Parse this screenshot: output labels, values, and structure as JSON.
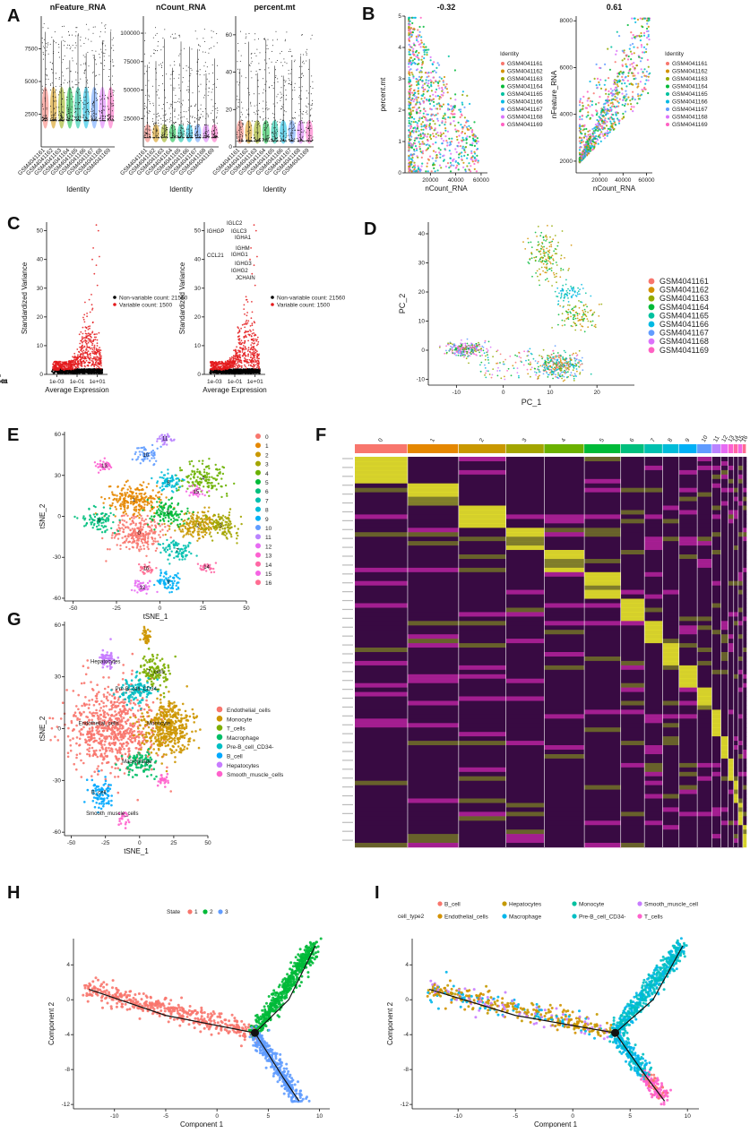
{
  "figure": {
    "panels": [
      {
        "id": "A",
        "label": "A"
      },
      {
        "id": "B",
        "label": "B"
      },
      {
        "id": "C",
        "label": "C"
      },
      {
        "id": "D",
        "label": "D"
      },
      {
        "id": "E",
        "label": "E"
      },
      {
        "id": "F",
        "label": "F"
      },
      {
        "id": "G",
        "label": "G"
      },
      {
        "id": "H",
        "label": "H"
      },
      {
        "id": "I",
        "label": "I"
      }
    ],
    "samples": [
      "GSM4041161",
      "GSM4041162",
      "GSM4041163",
      "GSM4041164",
      "GSM4041165",
      "GSM4041166",
      "GSM4041167",
      "GSM4041168",
      "GSM4041169"
    ],
    "sample_colors": [
      "#f8766d",
      "#d39200",
      "#93aa00",
      "#00ba38",
      "#00c19f",
      "#00b9e3",
      "#619cff",
      "#db72fb",
      "#ff61c3"
    ]
  },
  "chart_data": [
    {
      "panel": "A",
      "type": "violin",
      "subplots": [
        {
          "title": "nFeature_RNA",
          "xlabel": "Identity",
          "yticks": [
            "2500",
            "5000",
            "7500"
          ],
          "ylim": [
            0,
            10000
          ]
        },
        {
          "title": "nCount_RNA",
          "xlabel": "Identity",
          "yticks": [
            "25000",
            "50000",
            "75000",
            "100000"
          ],
          "ylim": [
            0,
            115000
          ]
        },
        {
          "title": "percent.mt",
          "xlabel": "Identity",
          "yticks": [
            "0",
            "20",
            "40",
            "60"
          ],
          "ylim": [
            0,
            70
          ]
        }
      ]
    },
    {
      "panel": "B",
      "type": "scatter",
      "legend_title": "Identity",
      "subplots": [
        {
          "title": "-0.32",
          "xlabel": "nCount_RNA",
          "ylabel": "percent.mt",
          "xticks": [
            "20000",
            "40000",
            "60000"
          ],
          "yticks": [
            "0",
            "1",
            "2",
            "3",
            "4",
            "5"
          ],
          "xlim": [
            0,
            65000
          ],
          "ylim": [
            0,
            5
          ]
        },
        {
          "title": "0.61",
          "xlabel": "nCount_RNA",
          "ylabel": "nFeature_RNA",
          "xticks": [
            "20000",
            "40000",
            "60000"
          ],
          "yticks": [
            "2000",
            "4000",
            "6000",
            "8000"
          ],
          "xlim": [
            0,
            65000
          ],
          "ylim": [
            1500,
            8200
          ]
        }
      ]
    },
    {
      "panel": "C",
      "type": "scatter",
      "xlabel": "Average Expression",
      "ylabel": "Standardized Variance",
      "xticks": [
        "1e-03",
        "1e-01",
        "1e+01"
      ],
      "yticks": [
        "0",
        "10",
        "20",
        "30",
        "40",
        "50"
      ],
      "legend": [
        "Non-variable count: 21560",
        "Variable count: 1500"
      ],
      "legend_colors": [
        "#000000",
        "#e41a1c"
      ],
      "gene_labels": [
        "IGLC2",
        "IGHGP",
        "IGLC3",
        "IGHA1",
        "IGHM",
        "CCL21",
        "IGHG1",
        "IGHG3",
        "IGHG2",
        "JCHAIN"
      ]
    },
    {
      "panel": "D",
      "type": "scatter",
      "xlabel": "PC_1",
      "ylabel": "PC_2",
      "xticks": [
        "-10",
        "0",
        "10",
        "20"
      ],
      "yticks": [
        "-10",
        "0",
        "10",
        "20",
        "30",
        "40"
      ],
      "xlim": [
        -16,
        28
      ],
      "ylim": [
        -12,
        44
      ]
    },
    {
      "panel": "E",
      "type": "scatter",
      "xlabel": "tSNE_1",
      "ylabel": "tSNE_2",
      "xticks": [
        "-50",
        "-25",
        "0",
        "25",
        "50"
      ],
      "yticks": [
        "-60",
        "-30",
        "0",
        "30",
        "60"
      ],
      "xlim": [
        -55,
        50
      ],
      "ylim": [
        -62,
        62
      ],
      "clusters": [
        "0",
        "1",
        "2",
        "3",
        "4",
        "5",
        "6",
        "7",
        "8",
        "9",
        "10",
        "11",
        "12",
        "13",
        "14",
        "15",
        "16"
      ],
      "cluster_colors": [
        "#f8766d",
        "#e58700",
        "#c99800",
        "#a3a500",
        "#6bb100",
        "#00ba38",
        "#00bf7d",
        "#00c0af",
        "#00bcd8",
        "#00b0f6",
        "#619cff",
        "#b983ff",
        "#e76bf3",
        "#fd61d1",
        "#ff67a4",
        "#f564e3",
        "#ff6c91"
      ],
      "centers": [
        [
          -12,
          -12
        ],
        [
          -15,
          12
        ],
        [
          22,
          -7
        ],
        [
          35,
          -7
        ],
        [
          25,
          28
        ],
        [
          5,
          3
        ],
        [
          -35,
          -3
        ],
        [
          10,
          -25
        ],
        [
          5,
          25
        ],
        [
          5,
          -48
        ],
        [
          -8,
          45
        ],
        [
          3,
          57
        ],
        [
          -10,
          -52
        ],
        [
          -32,
          37
        ],
        [
          27,
          -37
        ],
        [
          21,
          18
        ],
        [
          -8,
          -38
        ]
      ]
    },
    {
      "panel": "F",
      "type": "heatmap",
      "clusters": [
        "0",
        "1",
        "2",
        "3",
        "4",
        "5",
        "6",
        "7",
        "8",
        "9",
        "10",
        "11",
        "12",
        "13",
        "14",
        "15",
        "16"
      ],
      "widths": [
        58,
        56,
        52,
        42,
        44,
        40,
        26,
        20,
        18,
        20,
        16,
        10,
        8,
        6,
        5,
        5,
        4
      ]
    },
    {
      "panel": "G",
      "type": "scatter",
      "xlabel": "tSNE_1",
      "ylabel": "tSNE_2",
      "xticks": [
        "-50",
        "-25",
        "0",
        "25",
        "50"
      ],
      "yticks": [
        "-60",
        "-30",
        "0",
        "30",
        "60"
      ],
      "xlim": [
        -55,
        50
      ],
      "ylim": [
        -62,
        62
      ],
      "cell_types": [
        "Endothelial_cells",
        "Monocyte",
        "T_cells",
        "Macrophage",
        "Pre-B_cell_CD34-",
        "B_cell",
        "Hepatocytes",
        "Smooth_muscle_cells"
      ],
      "cell_type_colors": [
        "#f8766d",
        "#cd9600",
        "#7cae00",
        "#00be67",
        "#00bfc4",
        "#00a9ff",
        "#c77cff",
        "#ff61cc"
      ],
      "annotations": [
        {
          "text": "Hepatocytes",
          "x": -25,
          "y": 38
        },
        {
          "text": "Pre-B_cell_CD34-",
          "x": -2,
          "y": 22
        },
        {
          "text": "T_cells",
          "x": 12,
          "y": 32
        },
        {
          "text": "Endothelial_cells",
          "x": -30,
          "y": 2
        },
        {
          "text": "Monocyte",
          "x": 14,
          "y": 2
        },
        {
          "text": "Macrophage",
          "x": -2,
          "y": -20
        },
        {
          "text": "B_cell",
          "x": -30,
          "y": -38
        },
        {
          "text": "Smooth_muscle_cells",
          "x": -20,
          "y": -50
        }
      ]
    },
    {
      "panel": "H",
      "type": "scatter",
      "xlabel": "Component 1",
      "ylabel": "Component 2",
      "xticks": [
        "-10",
        "-5",
        "0",
        "5",
        "10"
      ],
      "yticks": [
        "-12",
        "-8",
        "-4",
        "0",
        "4"
      ],
      "xlim": [
        -14,
        11
      ],
      "ylim": [
        -12.5,
        7
      ],
      "legend_title": "State",
      "states": [
        "1",
        "2",
        "3"
      ],
      "state_colors": [
        "#f8766d",
        "#00ba38",
        "#619cff"
      ],
      "branch_point": "1"
    },
    {
      "panel": "I",
      "type": "scatter",
      "xlabel": "Component 1",
      "ylabel": "Component 2",
      "xticks": [
        "-10",
        "-5",
        "0",
        "5",
        "10"
      ],
      "yticks": [
        "-12",
        "-8",
        "-4",
        "0",
        "4"
      ],
      "xlim": [
        -14,
        11
      ],
      "ylim": [
        -12.5,
        7
      ],
      "legend_title": "cell_type2",
      "cell_types": [
        "B_cell",
        "Hepatocytes",
        "Monocyte",
        "Smooth_muscle_cell",
        "Endothelial_cells",
        "Macrophage",
        "Pre-B_cell_CD34-",
        "T_cells"
      ],
      "cell_type_colors": [
        "#f8766d",
        "#c49a00",
        "#00c19f",
        "#c77cff",
        "#d39200",
        "#00b6eb",
        "#00bfc4",
        "#ff61cc"
      ],
      "branch_point": "1"
    }
  ]
}
